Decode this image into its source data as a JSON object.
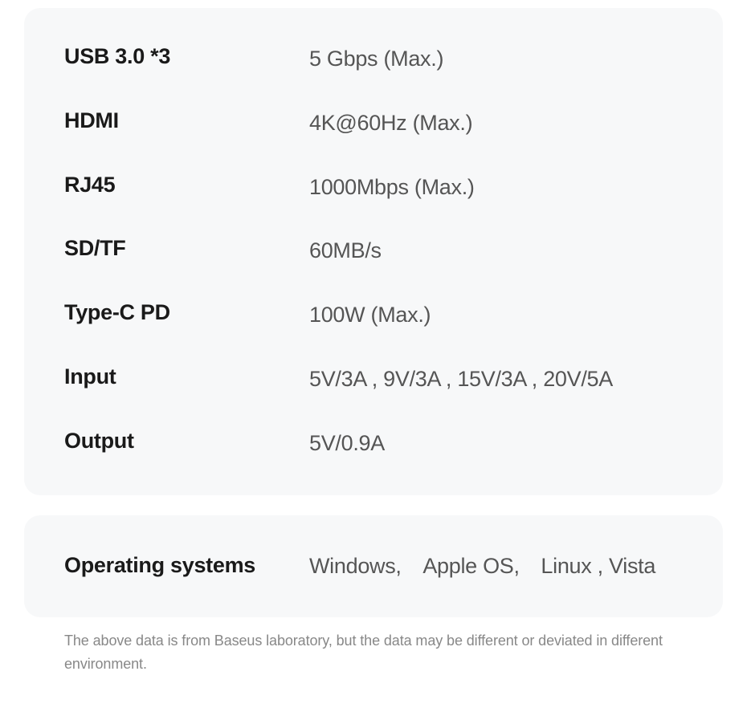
{
  "specs": {
    "rows": [
      {
        "label": "USB 3.0 *3",
        "value": "5 Gbps (Max.)"
      },
      {
        "label": "HDMI",
        "value": "4K@60Hz (Max.)"
      },
      {
        "label": "RJ45",
        "value": "1000Mbps (Max.)"
      },
      {
        "label": "SD/TF",
        "value": "60MB/s"
      },
      {
        "label": "Type-C PD",
        "value": "100W (Max.)"
      },
      {
        "label": "Input",
        "value": "5V/3A , 9V/3A , 15V/3A , 20V/5A"
      },
      {
        "label": "Output",
        "value": "5V/0.9A"
      }
    ]
  },
  "os": {
    "label": "Operating systems",
    "value": "Windows, Apple OS, Linux , Vista"
  },
  "footnote": "The above data is from Baseus laboratory, but the data may be different or deviated in different environment.",
  "styling": {
    "card_background": "#f7f8f9",
    "card_border_radius": 20,
    "label_color": "#1a1a1a",
    "label_font_size": 27,
    "label_font_weight": 700,
    "value_color": "#555555",
    "value_font_size": 27,
    "value_font_weight": 400,
    "footnote_color": "#888888",
    "footnote_font_size": 18,
    "body_background": "#ffffff",
    "label_column_width": 305,
    "row_spacing": 42
  }
}
